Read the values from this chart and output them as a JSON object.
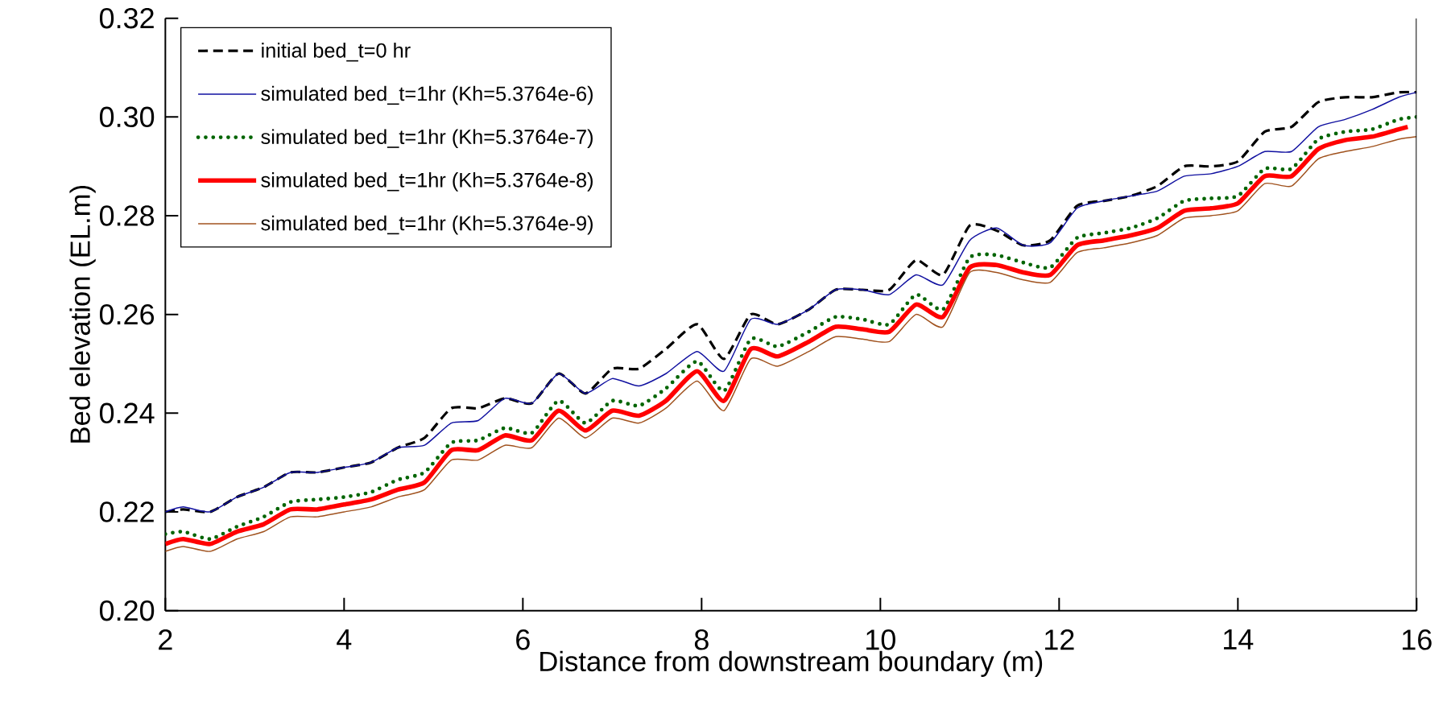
{
  "chart_data": {
    "type": "line",
    "xlabel": "Distance from downstream boundary (m)",
    "ylabel": "Bed elevation (EL.m)",
    "x": [
      2,
      2.2,
      2.5,
      2.8,
      3.1,
      3.4,
      3.7,
      4.0,
      4.3,
      4.6,
      4.9,
      5.2,
      5.5,
      5.8,
      6.1,
      6.4,
      6.7,
      7.0,
      7.3,
      7.6,
      7.95,
      8.25,
      8.55,
      8.85,
      9.2,
      9.5,
      9.8,
      10.1,
      10.4,
      10.7,
      11.0,
      11.3,
      11.6,
      11.9,
      12.2,
      12.5,
      12.8,
      13.1,
      13.4,
      13.7,
      14.0,
      14.3,
      14.6,
      14.9,
      15.2,
      15.5,
      15.8,
      16
    ],
    "series": [
      {
        "name": "initial bed_t=0 hr",
        "color": "#000000",
        "line_style": "dashed",
        "values": [
          0.22,
          0.2205,
          0.22,
          0.223,
          0.225,
          0.228,
          0.228,
          0.229,
          0.23,
          0.233,
          0.235,
          0.241,
          0.241,
          0.243,
          0.242,
          0.248,
          0.244,
          0.249,
          0.249,
          0.253,
          0.258,
          0.251,
          0.26,
          0.258,
          0.261,
          0.265,
          0.265,
          0.265,
          0.271,
          0.268,
          0.278,
          0.277,
          0.274,
          0.275,
          0.282,
          0.283,
          0.284,
          0.286,
          0.29,
          0.29,
          0.291,
          0.297,
          0.298,
          0.303,
          0.304,
          0.304,
          0.305,
          0.305
        ]
      },
      {
        "name": "simulated bed_t=1hr (Kh=5.3764e-6)",
        "color": "#1010a0",
        "line_style": "solid",
        "values": [
          0.22,
          0.221,
          0.22,
          0.223,
          0.225,
          0.228,
          0.228,
          0.229,
          0.23,
          0.233,
          0.2335,
          0.238,
          0.2385,
          0.243,
          0.242,
          0.248,
          0.244,
          0.247,
          0.2455,
          0.248,
          0.2525,
          0.2485,
          0.259,
          0.258,
          0.261,
          0.265,
          0.265,
          0.264,
          0.268,
          0.266,
          0.275,
          0.2775,
          0.274,
          0.2745,
          0.2815,
          0.283,
          0.284,
          0.285,
          0.288,
          0.2885,
          0.29,
          0.293,
          0.293,
          0.298,
          0.2995,
          0.3015,
          0.304,
          0.305
        ]
      },
      {
        "name": "simulated bed_t=1hr (Kh=5.3764e-7)",
        "color": "#006400",
        "line_style": "dotted",
        "values": [
          0.2155,
          0.216,
          0.2145,
          0.217,
          0.219,
          0.222,
          0.2225,
          0.223,
          0.224,
          0.2265,
          0.228,
          0.234,
          0.2345,
          0.237,
          0.236,
          0.2425,
          0.238,
          0.2425,
          0.2415,
          0.245,
          0.2505,
          0.2445,
          0.255,
          0.2535,
          0.2565,
          0.2595,
          0.259,
          0.258,
          0.264,
          0.261,
          0.2715,
          0.272,
          0.2705,
          0.2695,
          0.2755,
          0.2765,
          0.2775,
          0.2795,
          0.283,
          0.2835,
          0.284,
          0.2895,
          0.2895,
          0.2955,
          0.297,
          0.2975,
          0.2995,
          0.3
        ]
      },
      {
        "name": "simulated bed_t=1hr (Kh=5.3764e-8)",
        "color": "#ff0000",
        "line_style": "solid",
        "x": [
          2,
          2.2,
          2.5,
          2.8,
          3.1,
          3.4,
          3.7,
          4.0,
          4.3,
          4.6,
          4.9,
          5.2,
          5.5,
          5.8,
          6.1,
          6.4,
          6.7,
          7.0,
          7.3,
          7.6,
          7.95,
          8.25,
          8.55,
          8.85,
          9.2,
          9.5,
          9.8,
          10.1,
          10.4,
          10.7,
          11.0,
          11.3,
          11.6,
          11.9,
          12.2,
          12.5,
          12.8,
          13.1,
          13.4,
          13.7,
          14.0,
          14.3,
          14.6,
          14.9,
          15.2,
          15.5,
          15.8,
          15.9
        ],
        "values": [
          0.2135,
          0.2145,
          0.2135,
          0.216,
          0.2175,
          0.2205,
          0.2205,
          0.2215,
          0.2225,
          0.2245,
          0.226,
          0.2325,
          0.2325,
          0.2355,
          0.2345,
          0.2405,
          0.2365,
          0.2405,
          0.2395,
          0.2425,
          0.2485,
          0.2425,
          0.253,
          0.2515,
          0.2545,
          0.2575,
          0.257,
          0.2565,
          0.262,
          0.2595,
          0.2695,
          0.27,
          0.2685,
          0.268,
          0.274,
          0.275,
          0.276,
          0.2775,
          0.281,
          0.2815,
          0.2825,
          0.288,
          0.288,
          0.2935,
          0.2953,
          0.296,
          0.2975,
          0.298
        ]
      },
      {
        "name": "simulated bed_t=1hr (Kh=5.3764e-9)",
        "color": "#a0521e",
        "line_style": "solid",
        "values": [
          0.212,
          0.213,
          0.212,
          0.2145,
          0.216,
          0.219,
          0.219,
          0.22,
          0.221,
          0.223,
          0.2245,
          0.2305,
          0.2305,
          0.2335,
          0.233,
          0.239,
          0.235,
          0.239,
          0.238,
          0.241,
          0.2465,
          0.2405,
          0.251,
          0.2495,
          0.2525,
          0.2555,
          0.255,
          0.2545,
          0.26,
          0.2575,
          0.2685,
          0.2685,
          0.267,
          0.2665,
          0.2725,
          0.2735,
          0.2745,
          0.276,
          0.2795,
          0.28,
          0.281,
          0.2865,
          0.286,
          0.2915,
          0.293,
          0.294,
          0.2955,
          0.296
        ]
      }
    ],
    "xlim": [
      2,
      16
    ],
    "ylim": [
      0.2,
      0.32
    ],
    "xticks": [
      2,
      4,
      6,
      8,
      10,
      12,
      14,
      16
    ],
    "yticks": [
      {
        "value": 0.2,
        "label": "0.20"
      },
      {
        "value": 0.22,
        "label": "0.22"
      },
      {
        "value": 0.24,
        "label": "0.24"
      },
      {
        "value": 0.26,
        "label": "0.26"
      },
      {
        "value": 0.28,
        "label": "0.28"
      },
      {
        "value": 0.3,
        "label": "0.30"
      },
      {
        "value": 0.32,
        "label": "0.32"
      }
    ],
    "grid": false,
    "legend": "top left"
  }
}
